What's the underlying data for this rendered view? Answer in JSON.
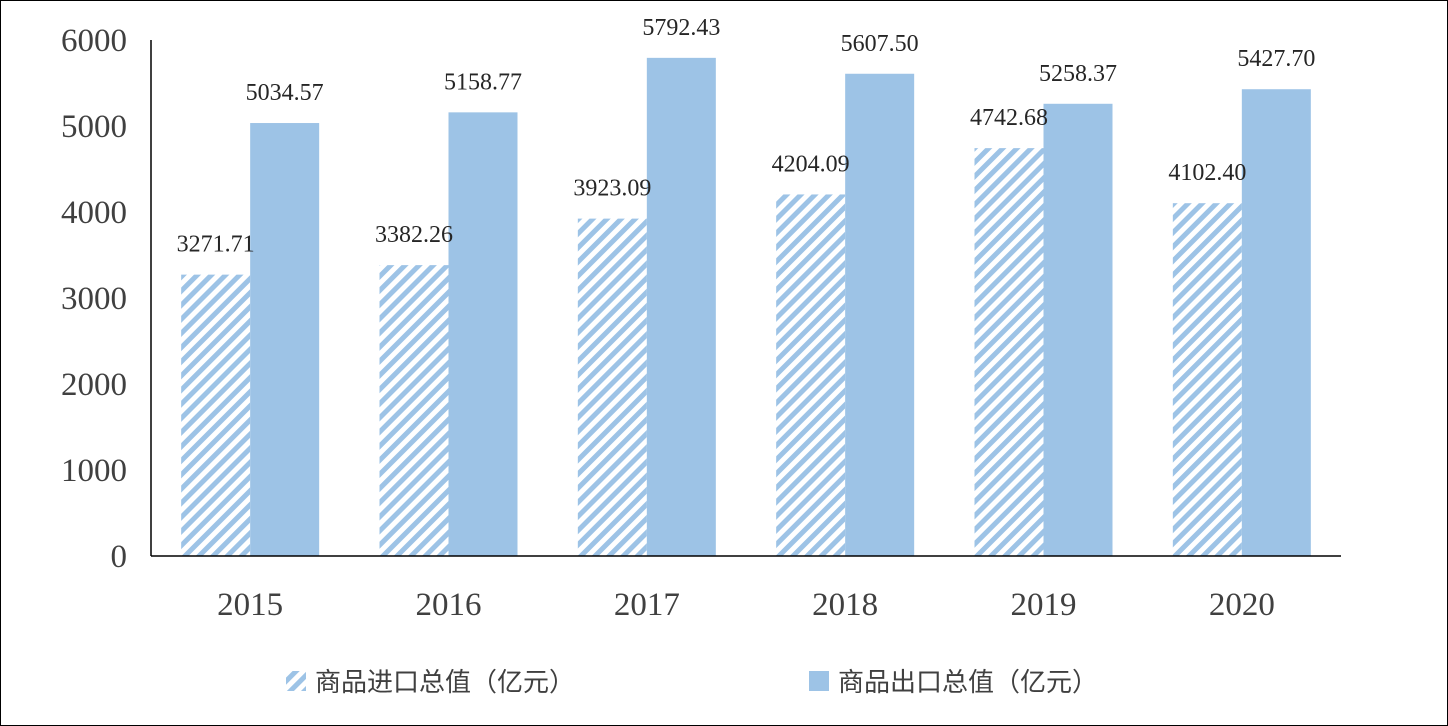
{
  "chart_data": {
    "type": "bar",
    "categories": [
      "2015",
      "2016",
      "2017",
      "2018",
      "2019",
      "2020"
    ],
    "series": [
      {
        "name": "商品进口总值（亿元）",
        "values": [
          3271.71,
          3382.26,
          3923.09,
          4204.09,
          4742.68,
          4102.4
        ],
        "labels": [
          "3271.71",
          "3382.26",
          "3923.09",
          "4204.09",
          "4742.68",
          "4102.40"
        ],
        "color": "#9DC3E6",
        "pattern": "diagonal-hatch"
      },
      {
        "name": "商品出口总值（亿元）",
        "values": [
          5034.57,
          5158.77,
          5792.43,
          5607.5,
          5258.37,
          5427.7
        ],
        "labels": [
          "5034.57",
          "5158.77",
          "5792.43",
          "5607.50",
          "5258.37",
          "5427.70"
        ],
        "color": "#9DC3E6",
        "pattern": "solid"
      }
    ],
    "yticks": [
      "0",
      "1000",
      "2000",
      "3000",
      "4000",
      "5000",
      "6000"
    ],
    "ylim": [
      0,
      6000
    ],
    "grid": false,
    "legend_position": "bottom",
    "title": "",
    "xlabel": "",
    "ylabel": ""
  }
}
